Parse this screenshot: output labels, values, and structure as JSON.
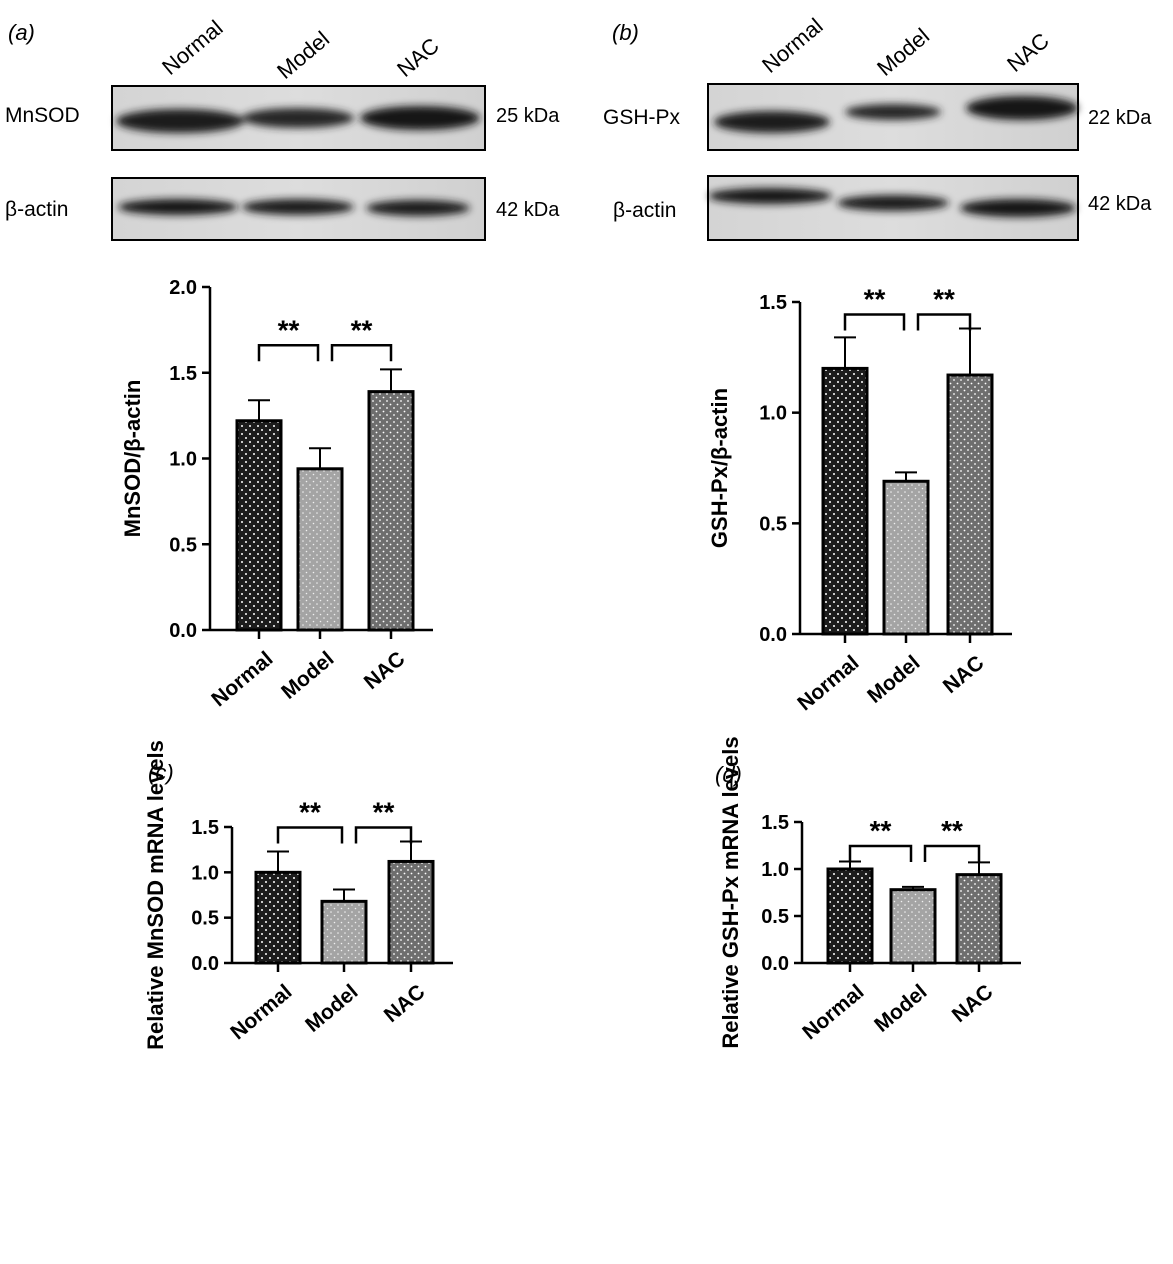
{
  "panels": {
    "a": {
      "label": "(a)",
      "blot": {
        "lanes": [
          "Normal",
          "Model",
          "NAC"
        ],
        "rows": [
          {
            "name": "MnSOD",
            "size": "25 kDa"
          },
          {
            "name": "β-actin",
            "size": "42 kDa"
          }
        ]
      }
    },
    "b": {
      "label": "(b)",
      "blot": {
        "lanes": [
          "Normal",
          "Model",
          "NAC"
        ],
        "rows": [
          {
            "name": "GSH-Px",
            "size": "22 kDa"
          },
          {
            "name": "β-actin",
            "size": "42 kDa"
          }
        ]
      }
    },
    "c": {
      "label": "(c)"
    },
    "d": {
      "label": "(d)"
    }
  },
  "chart_data": [
    {
      "id": "a",
      "type": "bar",
      "categories": [
        "Normal",
        "Model",
        "NAC"
      ],
      "values": [
        1.22,
        0.94,
        1.39
      ],
      "errors": [
        0.12,
        0.12,
        0.13
      ],
      "ylabel": "MnSOD/β-actin",
      "ylim": [
        0,
        2.0
      ],
      "yticks": [
        "0.0",
        "0.5",
        "1.0",
        "1.5",
        "2.0"
      ],
      "significance": [
        {
          "from": 0,
          "to": 1,
          "label": "**"
        },
        {
          "from": 1,
          "to": 2,
          "label": "**"
        }
      ],
      "bar_colors": [
        "#1c1c1c",
        "#9e9e9e",
        "#6e6e6e"
      ],
      "grid": false
    },
    {
      "id": "b",
      "type": "bar",
      "categories": [
        "Normal",
        "Model",
        "NAC"
      ],
      "values": [
        1.2,
        0.69,
        1.17
      ],
      "errors": [
        0.14,
        0.04,
        0.21
      ],
      "ylabel": "GSH-Px/β-actin",
      "ylim": [
        0,
        1.5
      ],
      "yticks": [
        "0.0",
        "0.5",
        "1.0",
        "1.5"
      ],
      "significance": [
        {
          "from": 0,
          "to": 1,
          "label": "**"
        },
        {
          "from": 1,
          "to": 2,
          "label": "**"
        }
      ],
      "bar_colors": [
        "#1c1c1c",
        "#9e9e9e",
        "#6e6e6e"
      ],
      "grid": false
    },
    {
      "id": "c",
      "type": "bar",
      "categories": [
        "Normal",
        "Model",
        "NAC"
      ],
      "values": [
        1.0,
        0.68,
        1.12
      ],
      "errors": [
        0.23,
        0.13,
        0.22
      ],
      "ylabel": "Relative MnSOD mRNA levels",
      "ylim": [
        0,
        1.5
      ],
      "yticks": [
        "0.0",
        "0.5",
        "1.0",
        "1.5"
      ],
      "significance": [
        {
          "from": 0,
          "to": 1,
          "label": "**"
        },
        {
          "from": 1,
          "to": 2,
          "label": "**"
        }
      ],
      "bar_colors": [
        "#1c1c1c",
        "#9e9e9e",
        "#6e6e6e"
      ],
      "grid": false
    },
    {
      "id": "d",
      "type": "bar",
      "categories": [
        "Normal",
        "Model",
        "NAC"
      ],
      "values": [
        1.0,
        0.78,
        0.94
      ],
      "errors": [
        0.08,
        0.03,
        0.13
      ],
      "ylabel": "Relative GSH-Px mRNA levels",
      "ylim": [
        0,
        1.5
      ],
      "yticks": [
        "0.0",
        "0.5",
        "1.0",
        "1.5"
      ],
      "significance": [
        {
          "from": 0,
          "to": 1,
          "label": "**"
        },
        {
          "from": 1,
          "to": 2,
          "label": "**"
        }
      ],
      "bar_colors": [
        "#1c1c1c",
        "#9e9e9e",
        "#6e6e6e"
      ],
      "grid": false
    }
  ]
}
